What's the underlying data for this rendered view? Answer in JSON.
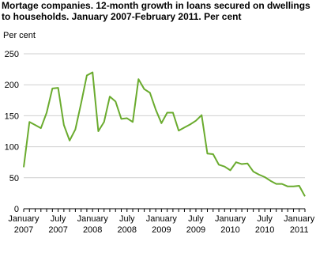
{
  "chart_data": {
    "type": "line",
    "title": "Mortage companies. 12-month growth in loans secured on dwellings to households. January 2007-February 2011. Per cent",
    "y_label": "Per cent",
    "categories": [
      "January 2007",
      null,
      null,
      null,
      null,
      null,
      "July 2007",
      null,
      null,
      null,
      null,
      null,
      "January 2008",
      null,
      null,
      null,
      null,
      null,
      "July 2008",
      null,
      null,
      null,
      null,
      null,
      "January 2009",
      null,
      null,
      null,
      null,
      null,
      "July 2009",
      null,
      null,
      null,
      null,
      null,
      "January 2010",
      null,
      null,
      null,
      null,
      null,
      "July 2010",
      null,
      null,
      null,
      null,
      null,
      "January 2011",
      null
    ],
    "series": [
      {
        "name": "Growth",
        "color": "#6aab2e",
        "values": [
          67,
          140,
          135,
          130,
          155,
          194,
          195,
          135,
          110,
          128,
          170,
          215,
          220,
          125,
          140,
          181,
          173,
          145,
          146,
          140,
          209,
          193,
          187,
          160,
          138,
          155,
          155,
          126,
          131,
          136,
          142,
          151,
          89,
          88,
          71,
          68,
          62,
          75,
          72,
          73,
          60,
          55,
          51,
          45,
          40,
          40,
          36,
          36,
          37,
          20
        ]
      }
    ],
    "ylim": [
      0,
      250
    ],
    "yticks": [
      0,
      50,
      100,
      150,
      200,
      250
    ],
    "grid": true
  }
}
